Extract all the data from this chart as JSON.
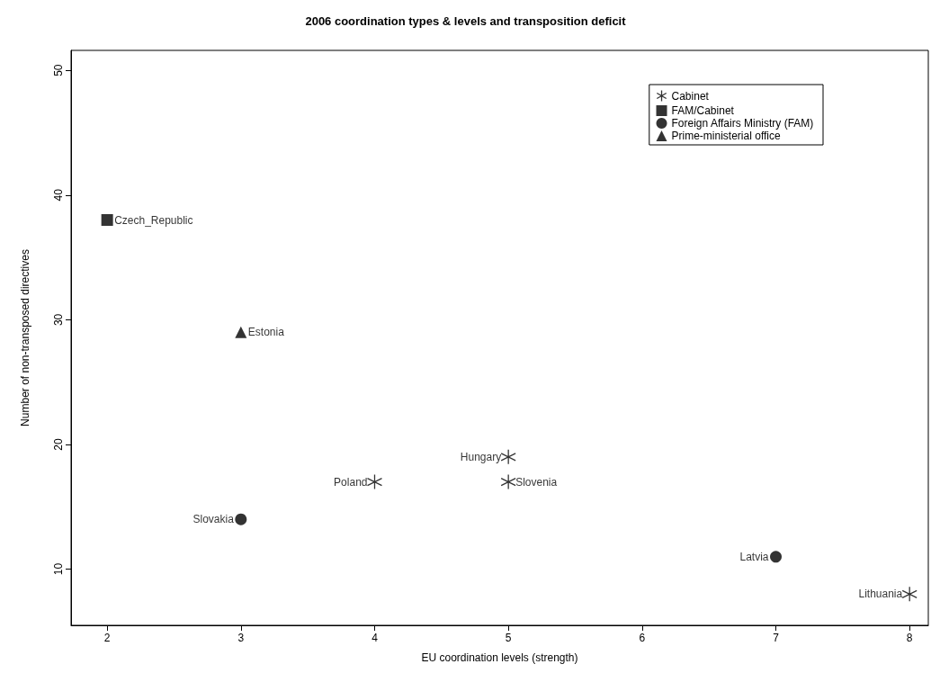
{
  "chart_data": {
    "type": "scatter",
    "title": "2006 coordination types & levels and transposition deficit",
    "xlabel": "EU coordination levels (strength)",
    "ylabel": "Number of non-transposed directives",
    "xlim": [
      1.73,
      8.14
    ],
    "xticks": [
      2,
      3,
      4,
      5,
      6,
      7,
      8
    ],
    "ylim": [
      5.5,
      51.6
    ],
    "yticks": [
      10,
      20,
      30,
      40,
      50
    ],
    "grid": false,
    "legend": "top right",
    "series": [
      {
        "name": "Cabinet",
        "color": "#000000",
        "marker": "cross",
        "x": [
          4,
          5,
          5,
          8
        ],
        "values": [
          17,
          19,
          17,
          8
        ]
      },
      {
        "name": "FAM/Cabinet",
        "color": "#000000",
        "marker": "square",
        "x": [
          2
        ],
        "values": [
          38
        ]
      },
      {
        "name": "Foreign Affairs Ministry (FAM)",
        "color": "#000000",
        "marker": "circle",
        "x": [
          3,
          7
        ],
        "values": [
          14,
          11
        ]
      },
      {
        "name": "Prime-ministerial office",
        "color": "#000000",
        "marker": "triangle",
        "x": [
          3
        ],
        "values": [
          29
        ]
      }
    ],
    "annotations": [
      {
        "text": "Czech_Republic",
        "x": 2,
        "y": 38
      },
      {
        "text": "Estonia",
        "x": 3,
        "y": 29
      },
      {
        "text": "Slovakia",
        "x": 3,
        "y": 14
      },
      {
        "text": "Poland",
        "x": 4,
        "y": 17
      },
      {
        "text": "Hungary",
        "x": 5,
        "y": 19
      },
      {
        "text": "Slovenia",
        "x": 5,
        "y": 17
      },
      {
        "text": "Latvia",
        "x": 7,
        "y": 11
      },
      {
        "text": "Lithuania",
        "x": 8,
        "y": 8
      }
    ]
  }
}
